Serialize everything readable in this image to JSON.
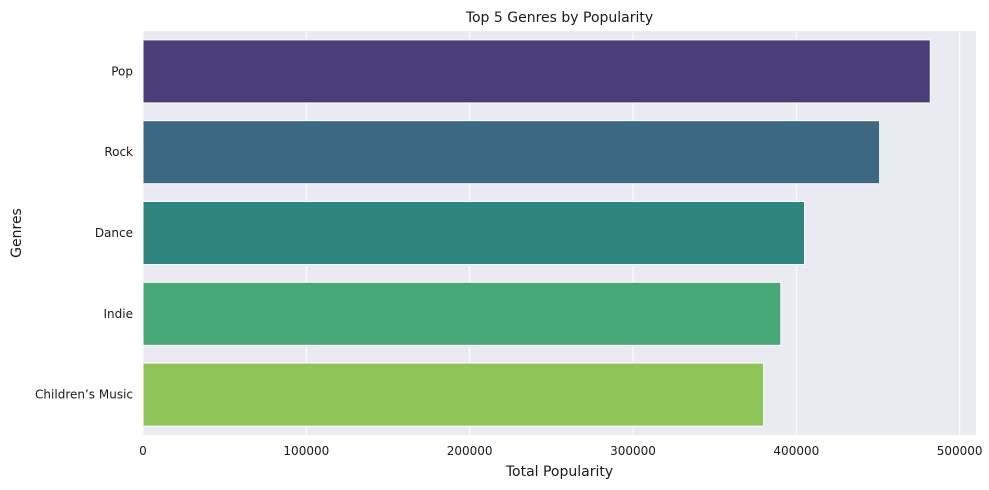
{
  "chart_data": {
    "type": "bar",
    "orientation": "horizontal",
    "title": "Top 5 Genres by Popularity",
    "xlabel": "Total Popularity",
    "ylabel": "Genres",
    "categories": [
      "Pop",
      "Rock",
      "Dance",
      "Indie",
      "Children’s Music"
    ],
    "values": [
      482000,
      451000,
      405000,
      390500,
      380000
    ],
    "colors": [
      "#4a3d7a",
      "#3d6884",
      "#2e847f",
      "#47a878",
      "#8fc558"
    ],
    "xlim": [
      0,
      510000
    ],
    "x_ticks": [
      0,
      100000,
      200000,
      300000,
      400000,
      500000
    ],
    "x_tick_labels": [
      "0",
      "100000",
      "200000",
      "300000",
      "400000",
      "500000"
    ],
    "grid": true,
    "background": "#eaeaf2",
    "grid_color": "#ffffff"
  }
}
